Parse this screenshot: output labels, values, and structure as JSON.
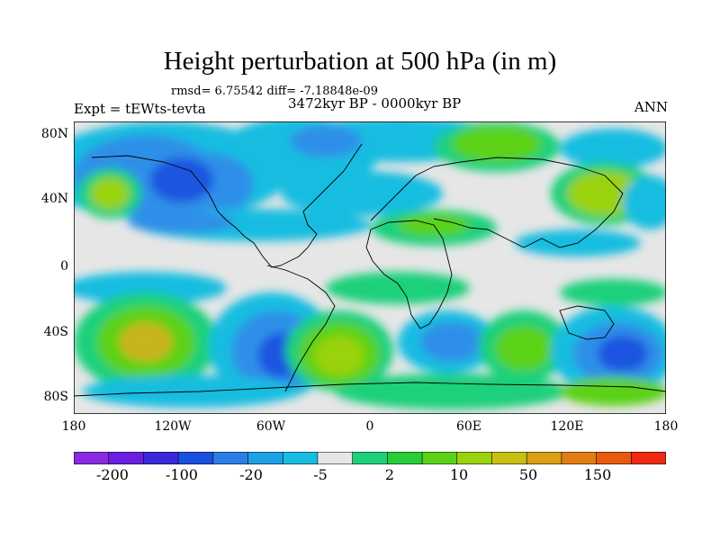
{
  "title": "Height perturbation at 500 hPa (in m)",
  "stats_line": "rmsd= 6.75542 diff= -7.18848e-09",
  "experiment": "Expt = tEWts-tevta",
  "period": "3472kyr BP - 0000kyr BP",
  "season": "ANN",
  "map": {
    "projection": "cylindrical-equidistant",
    "lon_range": [
      -180,
      180
    ],
    "lat_range": [
      -90,
      90
    ],
    "lat_labels": [
      "80N",
      "40N",
      "0",
      "40S",
      "80S"
    ],
    "lon_labels": [
      "180",
      "120W",
      "60W",
      "0",
      "60E",
      "120E",
      "180"
    ],
    "field_colors": {
      "neg_strong": "#1a55e0",
      "neg_mid": "#2f8fe8",
      "neg_weak": "#18bde0",
      "neutral": "#e6e6e6",
      "pos_weak": "#1ed07c",
      "pos_mid": "#5bd218",
      "pos_strong": "#9ad20c",
      "pos_max": "#c8b41a"
    }
  },
  "colorbar": {
    "colors": [
      "#8a2be2",
      "#6a1fe0",
      "#3a28d8",
      "#1a50e0",
      "#2a7ee8",
      "#1ea0e6",
      "#18bce0",
      "#e6e6e6",
      "#1ed07c",
      "#2acc3a",
      "#5bd218",
      "#9ad20c",
      "#c8c014",
      "#d8a012",
      "#e07e14",
      "#e85a10",
      "#ee2a10"
    ],
    "labels": [
      "-200",
      "-100",
      "-20",
      "-5",
      "2",
      "10",
      "50",
      "150"
    ]
  }
}
